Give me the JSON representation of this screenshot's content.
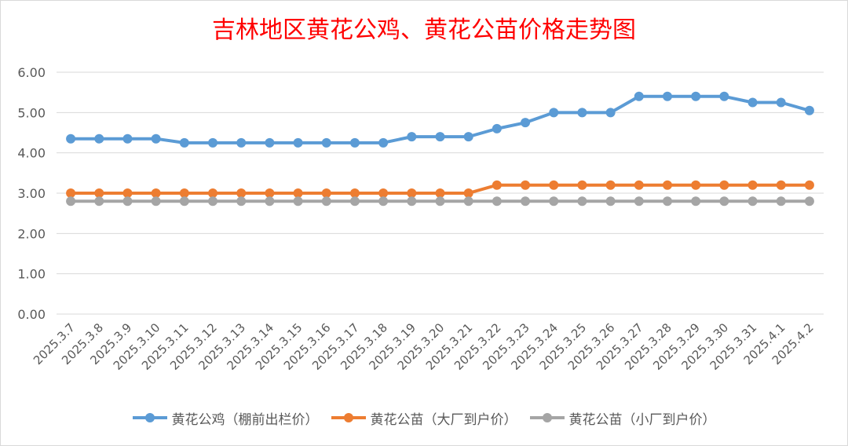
{
  "chart_data": {
    "type": "line",
    "title": "吉林地区黄花公鸡、黄花公苗价格走势图",
    "xlabel": "",
    "ylabel": "",
    "x": [
      "2025.3.7",
      "2025.3.8",
      "2025.3.9",
      "2025.3.10",
      "2025.3.11",
      "2025.3.12",
      "2025.3.13",
      "2025.3.14",
      "2025.3.15",
      "2025.3.16",
      "2025.3.17",
      "2025.3.18",
      "2025.3.19",
      "2025.3.20",
      "2025.3.21",
      "2025.3.22",
      "2025.3.23",
      "2025.3.24",
      "2025.3.25",
      "2025.3.26",
      "2025.3.27",
      "2025.3.28",
      "2025.3.29",
      "2025.3.30",
      "2025.3.31",
      "2025.4.1",
      "2025.4.2"
    ],
    "ylim": [
      0,
      6
    ],
    "yticks": [
      "0.00",
      "1.00",
      "2.00",
      "3.00",
      "4.00",
      "5.00",
      "6.00"
    ],
    "grid": true,
    "legend_position": "bottom",
    "series": [
      {
        "name": "黄花公鸡（棚前出栏价）",
        "color": "#5b9bd5",
        "values": [
          4.35,
          4.35,
          4.35,
          4.35,
          4.25,
          4.25,
          4.25,
          4.25,
          4.25,
          4.25,
          4.25,
          4.25,
          4.4,
          4.4,
          4.4,
          4.6,
          4.75,
          5.0,
          5.0,
          5.0,
          5.4,
          5.4,
          5.4,
          5.4,
          5.25,
          5.25,
          5.05
        ]
      },
      {
        "name": "黄花公苗（大厂到户价）",
        "color": "#ed7d31",
        "values": [
          3.0,
          3.0,
          3.0,
          3.0,
          3.0,
          3.0,
          3.0,
          3.0,
          3.0,
          3.0,
          3.0,
          3.0,
          3.0,
          3.0,
          3.0,
          3.2,
          3.2,
          3.2,
          3.2,
          3.2,
          3.2,
          3.2,
          3.2,
          3.2,
          3.2,
          3.2,
          3.2
        ]
      },
      {
        "name": "黄花公苗（小厂到户价）",
        "color": "#a5a5a5",
        "values": [
          2.8,
          2.8,
          2.8,
          2.8,
          2.8,
          2.8,
          2.8,
          2.8,
          2.8,
          2.8,
          2.8,
          2.8,
          2.8,
          2.8,
          2.8,
          2.8,
          2.8,
          2.8,
          2.8,
          2.8,
          2.8,
          2.8,
          2.8,
          2.8,
          2.8,
          2.8,
          2.8
        ]
      }
    ]
  }
}
